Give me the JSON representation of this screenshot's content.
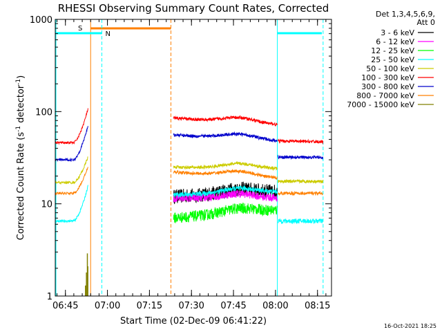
{
  "chart_data": {
    "type": "line",
    "title": "RHESSI Observing Summary Count Rates, Corrected",
    "xlabel": "Start Time (02-Dec-09 06:41:22)",
    "ylabel_main": "Corrected Count Rate (s",
    "ylabel_exp1": "-1",
    "ylabel_mid": " detector",
    "ylabel_exp2": "-1",
    "ylabel_end": ")",
    "y_scale": "log",
    "ylim": [
      1,
      1000
    ],
    "xlim": [
      "06:41:22",
      "08:20:00"
    ],
    "x_ticks": [
      "06:45",
      "07:00",
      "07:15",
      "07:30",
      "07:45",
      "08:00",
      "08:15"
    ],
    "y_ticks": [
      "1",
      "10",
      "100",
      "1000"
    ],
    "legend": {
      "position": "top-right",
      "header1": "Det 1,3,4,5,6,9,",
      "header2": "Att 0",
      "entries": [
        {
          "name": "3 - 6 keV",
          "color": "#000000"
        },
        {
          "name": "6 - 12 keV",
          "color": "#ff00ff"
        },
        {
          "name": "12 - 25 keV",
          "color": "#00ff00"
        },
        {
          "name": "25 - 50 keV",
          "color": "#00ffff"
        },
        {
          "name": "50 - 100 keV",
          "color": "#cccc00"
        },
        {
          "name": "100 - 300 keV",
          "color": "#ff0000"
        },
        {
          "name": "300 - 800 keV",
          "color": "#0000cc"
        },
        {
          "name": "800 - 7000 keV",
          "color": "#ff8000"
        },
        {
          "name": "7000 - 15000 keV",
          "color": "#808000"
        }
      ]
    },
    "flag_labels": {
      "saa": "S",
      "night": "N"
    },
    "timestamp": "16-Oct-2021 18:25",
    "segments": [
      {
        "start": "06:41:22",
        "end": "06:53:10"
      },
      {
        "start": "07:23:20",
        "end": "08:00:40"
      },
      {
        "start": "08:00:40",
        "end": "08:17:00"
      }
    ],
    "series": [
      {
        "name": "3 - 6 keV",
        "color": "#000000",
        "levels": [
          [
            12,
            13.5
          ],
          [
            null,
            null
          ]
        ],
        "noise": 0.18
      },
      {
        "name": "6 - 12 keV",
        "color": "#ff00ff",
        "levels": [
          [
            11.5,
            11.5
          ],
          [
            null,
            null
          ]
        ],
        "noise": 0.1
      },
      {
        "name": "12 - 25 keV",
        "color": "#00ff00",
        "levels": [
          [
            7,
            8.5
          ],
          [
            null,
            null
          ]
        ],
        "noise": 0.14
      },
      {
        "name": "25 - 50 keV",
        "color": "#00ffff",
        "levels": [
          [
            12.5,
            13.5
          ],
          [
            6.5,
            6.5
          ]
        ],
        "noise": 0.06
      },
      {
        "name": "50 - 100 keV",
        "color": "#cccc00",
        "levels": [
          [
            25,
            24
          ],
          [
            17.5,
            17.5
          ]
        ],
        "noise": 0.04
      },
      {
        "name": "100 - 300 keV",
        "color": "#ff0000",
        "levels": [
          [
            85,
            72
          ],
          [
            48,
            47
          ]
        ],
        "noise": 0.04
      },
      {
        "name": "300 - 800 keV",
        "color": "#0000cc",
        "levels": [
          [
            56,
            48
          ],
          [
            32,
            32
          ]
        ],
        "noise": 0.04
      },
      {
        "name": "800 - 7000 keV",
        "color": "#ff8000",
        "levels": [
          [
            22,
            19
          ],
          [
            13,
            13
          ]
        ],
        "noise": 0.04
      }
    ],
    "pre_flare_levels": {
      "100 - 300 keV": [
        46,
        110
      ],
      "300 - 800 keV": [
        30,
        72
      ],
      "50 - 100 keV": [
        17,
        33
      ],
      "800 - 7000 keV": [
        13,
        26
      ],
      "25 - 50 keV": [
        6.5,
        16
      ]
    }
  }
}
